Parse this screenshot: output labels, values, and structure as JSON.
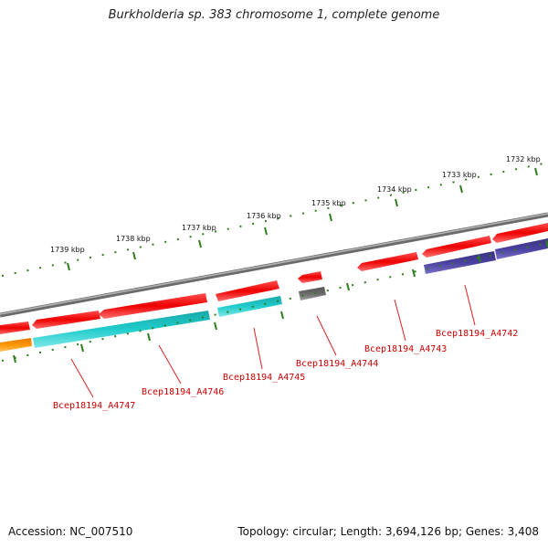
{
  "title": "Burkholderia sp. 383 chromosome 1, complete genome",
  "footer": {
    "accession": "Accession: NC_007510",
    "summary": "Topology: circular; Length: 3,694,126 bp; Genes: 3,408"
  },
  "colors": {
    "backbone": "#8a8a8a",
    "tick": "#2e7d1e",
    "tick_label": "#111111",
    "gene_label": "#cc0000",
    "leader": "#dd2222"
  },
  "scale": {
    "unit": "kbp",
    "labels": [
      {
        "text": "1732 kbp",
        "kbp": 1732
      },
      {
        "text": "1733 kbp",
        "kbp": 1733
      },
      {
        "text": "1734 kbp",
        "kbp": 1734
      },
      {
        "text": "1735 kbp",
        "kbp": 1735
      },
      {
        "text": "1736 kbp",
        "kbp": 1736
      },
      {
        "text": "1737 kbp",
        "kbp": 1737
      },
      {
        "text": "1738 kbp",
        "kbp": 1738
      },
      {
        "text": "1739 kbp",
        "kbp": 1739
      }
    ]
  },
  "genes": [
    {
      "label": "Bcep18194_A4742"
    },
    {
      "label": "Bcep18194_A4743"
    },
    {
      "label": "Bcep18194_A4744"
    },
    {
      "label": "Bcep18194_A4745"
    },
    {
      "label": "Bcep18194_A4746"
    },
    {
      "label": "Bcep18194_A4747"
    }
  ]
}
